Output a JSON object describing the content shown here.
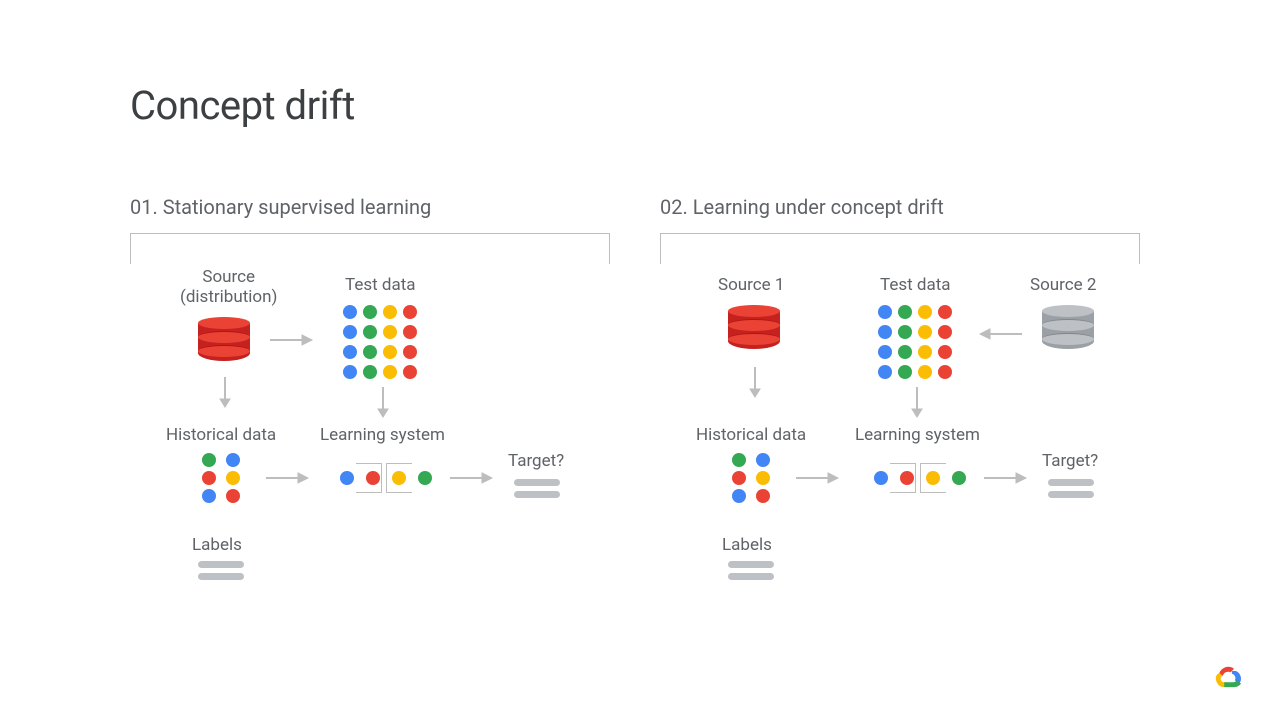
{
  "title": "Concept drift",
  "colors": {
    "blue": "#4285f4",
    "green": "#34a853",
    "yellow": "#fbbc04",
    "red": "#ea4335",
    "grey": "#9aa0a6",
    "grey_light": "#bdc1c6",
    "text": "#3c4043",
    "text_muted": "#5f6368",
    "line": "#bdbdbd",
    "bg": "#ffffff"
  },
  "panel1": {
    "title": "01. Stationary supervised learning",
    "source_label": "Source\n(distribution)",
    "test_label": "Test data",
    "hist_label": "Historical data",
    "ls_label": "Learning system",
    "target_label": "Target?",
    "labels_label": "Labels",
    "test_grid": [
      "B",
      "G",
      "Y",
      "R",
      "B",
      "G",
      "Y",
      "R",
      "B",
      "G",
      "Y",
      "R",
      "B",
      "G",
      "Y",
      "R"
    ],
    "hist_grid": [
      "G",
      "B",
      "R",
      "Y",
      "B",
      "R"
    ],
    "ls_dots": [
      "B",
      "R",
      "Y",
      "G"
    ]
  },
  "panel2": {
    "title": "02. Learning under concept drift",
    "source1_label": "Source 1",
    "source2_label": "Source 2",
    "test_label": "Test data",
    "hist_label": "Historical data",
    "ls_label": "Learning system",
    "target_label": "Target?",
    "labels_label": "Labels",
    "test_grid": [
      "B",
      "G",
      "Y",
      "R",
      "B",
      "G",
      "Y",
      "R",
      "B",
      "G",
      "Y",
      "R",
      "B",
      "G",
      "Y",
      "R"
    ],
    "hist_grid": [
      "G",
      "B",
      "R",
      "Y",
      "B",
      "R"
    ],
    "ls_dots": [
      "B",
      "R",
      "Y",
      "G"
    ]
  }
}
